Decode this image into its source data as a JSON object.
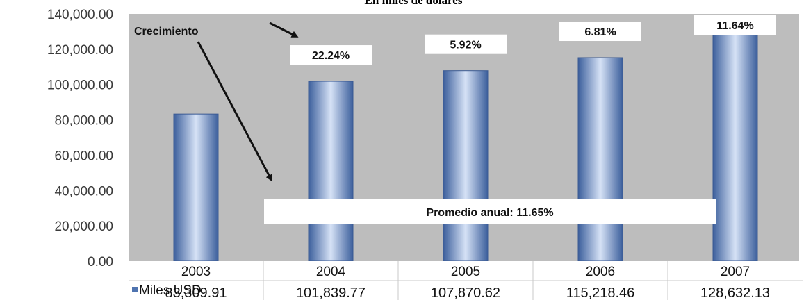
{
  "chart_data": {
    "type": "bar",
    "title": "En miles de dolares",
    "categories": [
      "2003",
      "2004",
      "2005",
      "2006",
      "2007"
    ],
    "series": [
      {
        "name": "Miles USD",
        "values": [
          83309.91,
          101839.77,
          107870.62,
          115218.46,
          128632.13
        ],
        "color": "#4f74b0"
      }
    ],
    "value_labels": [
      "83,309.91",
      "101,839.77",
      "107,870.62",
      "115,218.46",
      "128,632.13"
    ],
    "y_ticks": [
      "0.00",
      "20,000.00",
      "40,000.00",
      "60,000.00",
      "80,000.00",
      "100,000.00",
      "120,000.00",
      "140,000.00"
    ],
    "ylim": [
      0,
      140000
    ],
    "growth_labels": [
      "",
      "22.24%",
      "5.92%",
      "6.81%",
      "11.64%"
    ],
    "annotation_growth": "Crecimiento",
    "annotation_average": "Promedio anual: 11.65%",
    "legend": "data-table-bottom",
    "grid": false,
    "plot_background": "#bdbdbd"
  }
}
